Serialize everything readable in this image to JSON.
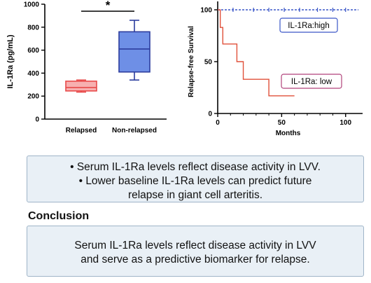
{
  "chart_data": [
    {
      "type": "box",
      "ylabel": "IL-1Ra (pg/mL)",
      "ylim": [
        0,
        1000
      ],
      "yticks": [
        0,
        200,
        400,
        600,
        800,
        1000
      ],
      "categories": [
        "Relapsed",
        "Non-relapsed"
      ],
      "boxes": [
        {
          "category": "Relapsed",
          "min": 235,
          "q1": 245,
          "median": 275,
          "q3": 330,
          "max": 340,
          "color": "#e84a4a",
          "fill": "#f7b0b0"
        },
        {
          "category": "Non-relapsed",
          "min": 340,
          "q1": 410,
          "median": 610,
          "q3": 760,
          "max": 860,
          "color": "#2c3d9e",
          "fill": "#6e8fe6"
        }
      ],
      "significance": "*"
    },
    {
      "type": "line",
      "xlabel": "Months",
      "ylabel": "Relapse-free Survival",
      "xlim": [
        0,
        110
      ],
      "ylim": [
        0,
        100
      ],
      "xticks": [
        0,
        50,
        100
      ],
      "yticks": [
        0,
        50,
        100
      ],
      "series": [
        {
          "name": "IL-1Ra:high",
          "color": "#3a56c8",
          "style": "dashed",
          "x": [
            0,
            110
          ],
          "y": [
            100,
            100
          ],
          "censor_x": [
            12,
            28,
            40,
            52,
            64,
            78,
            90,
            100
          ]
        },
        {
          "name": "IL-1Ra: low",
          "color": "#e0503a",
          "style": "step",
          "x": [
            0,
            2,
            4,
            12,
            15,
            17,
            20,
            25,
            40,
            60
          ],
          "y": [
            100,
            83,
            67,
            67,
            50,
            50,
            33,
            33,
            17,
            17
          ]
        }
      ]
    }
  ],
  "findings": [
    "Serum IL-1Ra levels reflect disease activity in LVV.",
    "Lower baseline IL-1Ra levels can predict future",
    "relapse in giant cell arteritis."
  ],
  "conclusion": {
    "heading": "Conclusion",
    "lines": [
      "Serum IL-1Ra levels reflect disease activity in LVV",
      "and serve as a predictive biomarker for relapse."
    ]
  }
}
